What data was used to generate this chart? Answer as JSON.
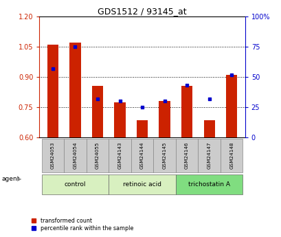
{
  "title": "GDS1512 / 93145_at",
  "samples": [
    "GSM24053",
    "GSM24054",
    "GSM24055",
    "GSM24143",
    "GSM24144",
    "GSM24145",
    "GSM24146",
    "GSM24147",
    "GSM24148"
  ],
  "transformed_count": [
    1.06,
    1.07,
    0.855,
    0.775,
    0.685,
    0.78,
    0.855,
    0.685,
    0.91
  ],
  "percentile_rank": [
    57,
    75,
    32,
    30,
    25,
    30,
    43,
    32,
    52
  ],
  "groups": [
    {
      "label": "control",
      "start": 0,
      "end": 3,
      "color": "#d8f0c0"
    },
    {
      "label": "retinoic acid",
      "start": 3,
      "end": 6,
      "color": "#d8f0c0"
    },
    {
      "label": "trichostatin A",
      "start": 6,
      "end": 9,
      "color": "#80dd80"
    }
  ],
  "ylim_left": [
    0.6,
    1.2
  ],
  "ylim_right": [
    0,
    100
  ],
  "yticks_left": [
    0.6,
    0.75,
    0.9,
    1.05,
    1.2
  ],
  "yticks_right": [
    0,
    25,
    50,
    75,
    100
  ],
  "bar_color": "#cc2200",
  "dot_color": "#0000cc",
  "bar_bottom": 0.6,
  "background_color": "#ffffff",
  "tick_label_color_left": "#cc2200",
  "tick_label_color_right": "#0000cc",
  "legend_items": [
    "transformed count",
    "percentile rank within the sample"
  ],
  "agent_label": "agent",
  "gridline_levels": [
    0.75,
    0.9,
    1.05
  ]
}
